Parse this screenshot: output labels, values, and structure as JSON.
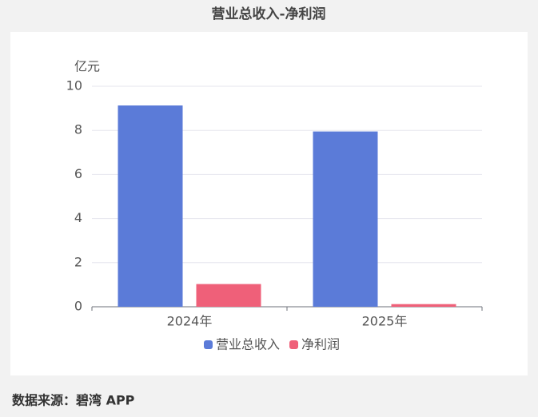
{
  "chart_data": {
    "type": "bar",
    "title": "营业总收入-净利润",
    "y_label": "亿元",
    "categories": [
      "2024年",
      "2025年"
    ],
    "series": [
      {
        "name": "营业总收入",
        "color": "#5b7bd8",
        "values": [
          9.13,
          7.95
        ]
      },
      {
        "name": "净利润",
        "color": "#ef6079",
        "values": [
          1.03,
          0.12
        ]
      }
    ],
    "ylim": [
      0,
      10
    ],
    "yticks": [
      0,
      2,
      4,
      6,
      8,
      10
    ],
    "grid": true,
    "legend": "bottom",
    "source": "数据来源：碧湾 APP"
  }
}
